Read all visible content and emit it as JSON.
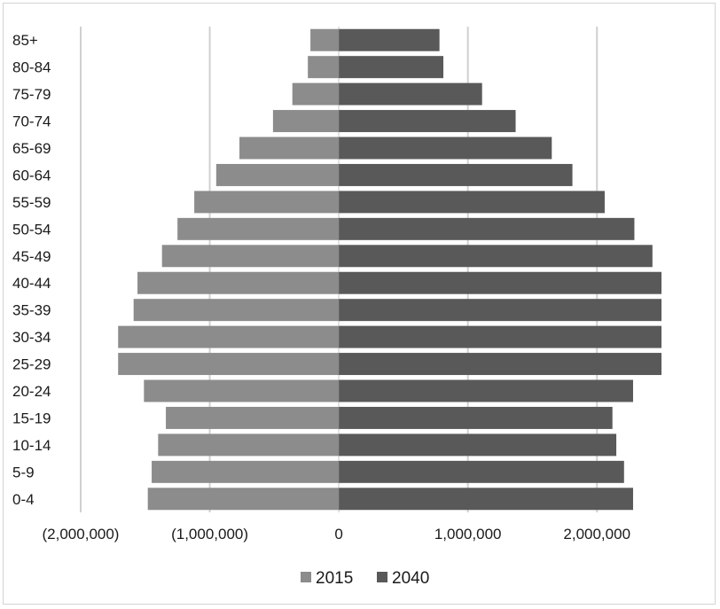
{
  "chart_data": {
    "type": "bar",
    "orientation": "horizontal",
    "layout": "population-pyramid",
    "title": "",
    "xlabel": "",
    "ylabel": "",
    "categories": [
      "85+",
      "80-84",
      "75-79",
      "70-74",
      "65-69",
      "60-64",
      "55-59",
      "50-54",
      "45-49",
      "40-44",
      "35-39",
      "30-34",
      "25-29",
      "20-24",
      "15-19",
      "10-14",
      "5-9",
      "0-4"
    ],
    "series": [
      {
        "name": "2015",
        "color": "#8c8c8c",
        "values": [
          -220000,
          -240000,
          -360000,
          -510000,
          -770000,
          -950000,
          -1120000,
          -1250000,
          -1370000,
          -1560000,
          -1590000,
          -1710000,
          -1710000,
          -1510000,
          -1340000,
          -1400000,
          -1450000,
          -1480000
        ]
      },
      {
        "name": "2040",
        "color": "#595959",
        "values": [
          780000,
          810000,
          1110000,
          1370000,
          1650000,
          1810000,
          2060000,
          2290000,
          2430000,
          2500000,
          2500000,
          2500000,
          2500000,
          2280000,
          2120000,
          2150000,
          2210000,
          2280000
        ]
      }
    ],
    "xlim": [
      -2000000,
      2500000
    ],
    "xticks": [
      -2000000,
      -1000000,
      0,
      1000000,
      2000000
    ],
    "xtick_labels": [
      "(2,000,000)",
      "(1,000,000)",
      "0",
      "1,000,000",
      "2,000,000"
    ],
    "grid": "vertical",
    "legend": {
      "position": "bottom",
      "entries": [
        "2015",
        "2040"
      ]
    }
  }
}
